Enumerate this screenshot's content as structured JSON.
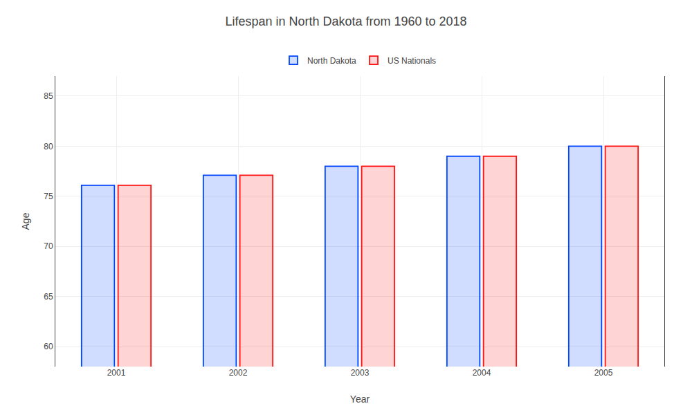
{
  "chart_data": {
    "type": "bar",
    "title": "Lifespan in North Dakota from 1960 to 2018",
    "xlabel": "Year",
    "ylabel": "Age",
    "categories": [
      "2001",
      "2002",
      "2003",
      "2004",
      "2005"
    ],
    "series": [
      {
        "name": "North Dakota",
        "color": "#0044ff",
        "values": [
          76.1,
          77.1,
          78.0,
          79.0,
          80.0
        ]
      },
      {
        "name": "US Nationals",
        "color": "#ff1111",
        "values": [
          76.1,
          77.1,
          78.0,
          79.0,
          80.0
        ]
      }
    ],
    "ylim": [
      58,
      87
    ],
    "yticks": [
      60,
      65,
      70,
      75,
      80,
      85
    ],
    "grid": true,
    "legend": "upper center"
  }
}
